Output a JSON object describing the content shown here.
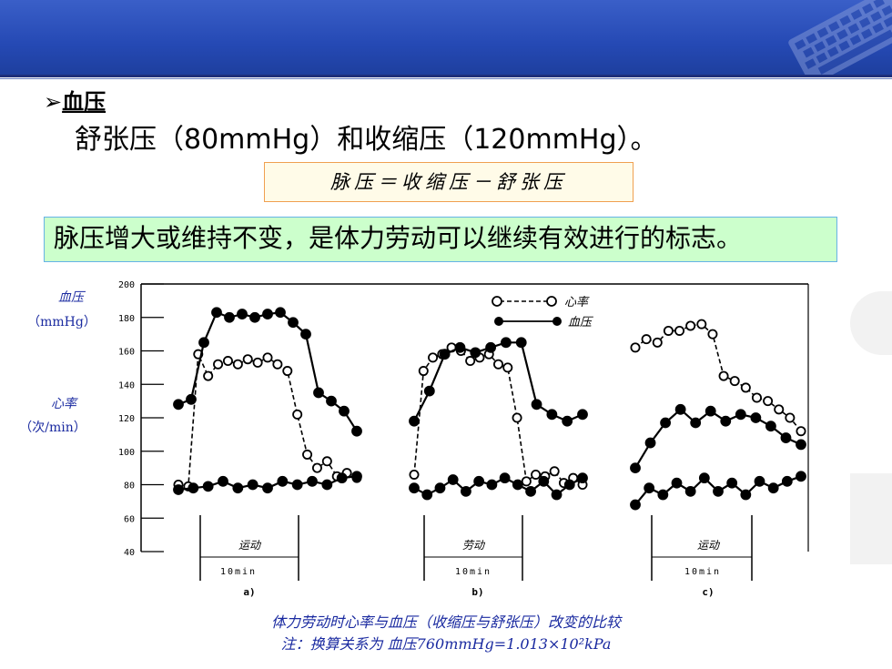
{
  "section": {
    "bullet": "➢",
    "title": "血压"
  },
  "line1": "舒张压（80mmHg）和收缩压（120mmHg）。",
  "formula": "脉压＝收缩压－舒张压",
  "highlight": "脉压增大或维持不变，是体力劳动可以继续有效进行的标志。",
  "caption": {
    "line1": "体力劳动时心率与血压（收缩压与舒张压）改变的比较",
    "line2": "注：换算关系为 血压760mmHg=1.013×10²kPa"
  },
  "colors": {
    "header": "#2549b4",
    "formula_border": "#f0a050",
    "highlight_bg": "#ccffcc",
    "highlight_border": "#66b3e6",
    "caption": "#1a2aa0"
  },
  "chart_data": {
    "type": "line",
    "ylim": [
      40,
      200
    ],
    "yticks": [
      40,
      60,
      80,
      100,
      120,
      140,
      160,
      180,
      200
    ],
    "ytick_labels": [
      "40",
      "60",
      "80",
      "100",
      "120",
      "140",
      "160",
      "180",
      "200"
    ],
    "ylabel_bp": {
      "name": "血压",
      "unit": "（mmHg）"
    },
    "ylabel_hr": {
      "name": "心率",
      "unit": "（次/min）"
    },
    "legend": [
      {
        "name": "心率",
        "marker": "open"
      },
      {
        "name": "血压",
        "marker": "filled"
      }
    ],
    "legend_position": "top-right",
    "panels": [
      {
        "label": "a)",
        "activity": "运动",
        "duration": "10min",
        "heart_rate": [
          80,
          79,
          158,
          145,
          152,
          154,
          152,
          155,
          153,
          156,
          152,
          148,
          122,
          98,
          90,
          94,
          85,
          87,
          84
        ],
        "systolic": [
          128,
          131,
          165,
          183,
          180,
          182,
          180,
          182,
          183,
          177,
          170,
          135,
          130,
          124,
          112
        ],
        "diastolic": [
          77,
          78,
          79,
          82,
          78,
          80,
          78,
          82,
          80,
          82,
          80,
          84,
          85
        ]
      },
      {
        "label": "b)",
        "activity": "劳动",
        "duration": "10min",
        "heart_rate": [
          86,
          148,
          156,
          158,
          162,
          160,
          154,
          156,
          158,
          152,
          150,
          120,
          82,
          86,
          85,
          88,
          81,
          84,
          80
        ],
        "systolic": [
          118,
          136,
          158,
          162,
          159,
          162,
          165,
          165,
          128,
          122,
          118,
          122
        ],
        "diastolic": [
          78,
          74,
          78,
          83,
          76,
          82,
          80,
          84,
          80,
          76,
          82,
          74,
          80,
          84
        ]
      },
      {
        "label": "c)",
        "activity": "运动",
        "duration": "10min",
        "heart_rate": [
          162,
          167,
          165,
          172,
          172,
          175,
          176,
          170,
          145,
          142,
          138,
          132,
          130,
          125,
          120,
          112
        ],
        "systolic": [
          90,
          105,
          117,
          125,
          117,
          124,
          118,
          122,
          120,
          115,
          108,
          104
        ],
        "diastolic": [
          68,
          78,
          74,
          81,
          76,
          84,
          76,
          81,
          74,
          82,
          78,
          82,
          85
        ]
      }
    ]
  }
}
